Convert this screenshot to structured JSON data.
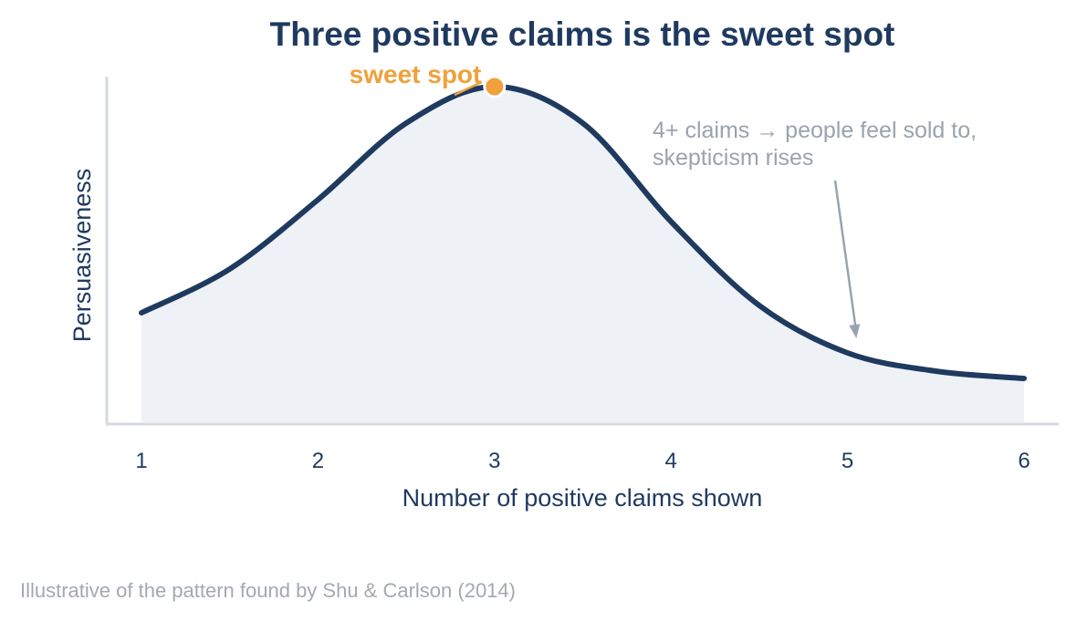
{
  "chart_data": {
    "type": "area",
    "title": "Three positive claims is the sweet spot",
    "xlabel": "Number of positive claims shown",
    "ylabel": "Persuasiveness",
    "x_ticks": [
      "1",
      "2",
      "3",
      "4",
      "5",
      "6"
    ],
    "xlim": [
      1,
      6
    ],
    "ylim": [
      0,
      1
    ],
    "y_ticks_shown": false,
    "grid": false,
    "series": [
      {
        "x": [
          1,
          1.5,
          2,
          2.5,
          3,
          3.5,
          4,
          4.5,
          5,
          5.5,
          6
        ],
        "y": [
          0.3,
          0.42,
          0.61,
          0.82,
          0.92,
          0.82,
          0.55,
          0.32,
          0.19,
          0.14,
          0.12
        ]
      }
    ],
    "annotations": [
      {
        "text": "sweet spot",
        "x": 3,
        "y": 0.92
      },
      {
        "lines": [
          "4+ claims → people feel sold to,",
          "skepticism rises"
        ],
        "x": 5.05,
        "y": 0.21
      }
    ],
    "colors": {
      "line": "#1f3a5f",
      "fill": "#eef1f6",
      "axis": "#d6dae0",
      "highlight": "#f0a13b",
      "annotation": "#9aa3ad",
      "footnote": "#a3a9b0"
    }
  },
  "footnote": "Illustrative of the pattern found by Shu & Carlson (2014)"
}
